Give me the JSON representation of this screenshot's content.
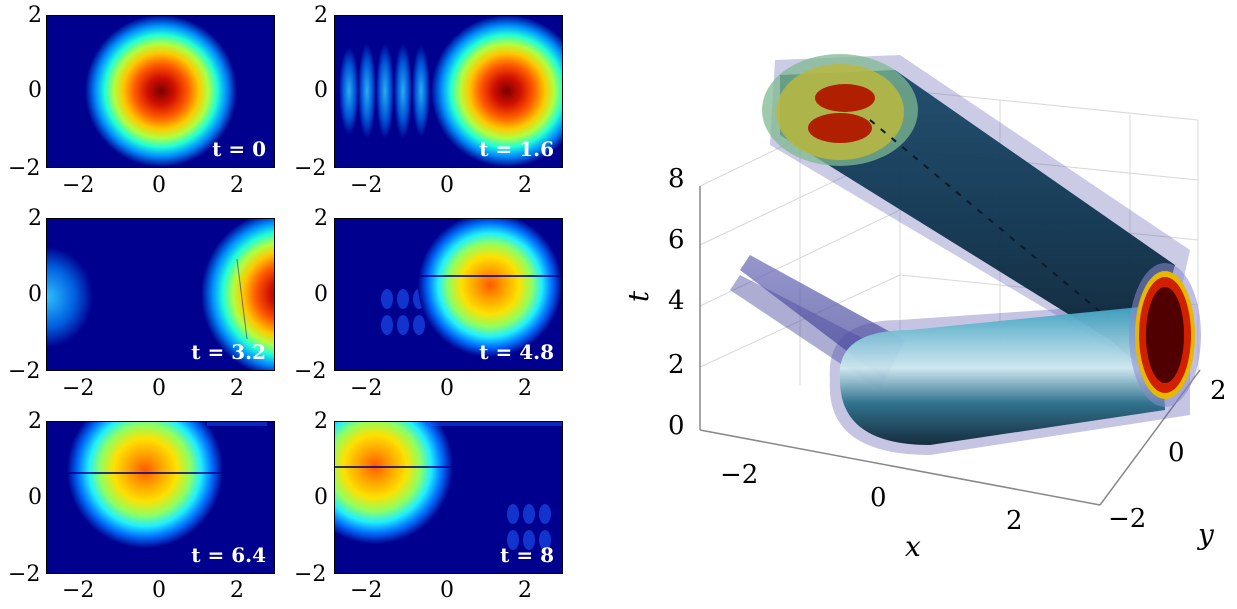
{
  "panels": [
    {
      "time_label": "t = 0",
      "yticks": [
        "2",
        "0",
        "−2"
      ],
      "xticks": [
        "−2",
        "0",
        "2"
      ]
    },
    {
      "time_label": "t = 1.6",
      "yticks": [
        "2",
        "0",
        "−2"
      ],
      "xticks": [
        "−2",
        "0",
        "2"
      ]
    },
    {
      "time_label": "t = 3.2",
      "yticks": [
        "2",
        "0",
        "−2"
      ],
      "xticks": [
        "−2",
        "0",
        "2"
      ]
    },
    {
      "time_label": "t = 4.8",
      "yticks": [
        "2",
        "0",
        "−2"
      ],
      "xticks": [
        "−2",
        "0",
        "2"
      ]
    },
    {
      "time_label": "t = 6.4",
      "yticks": [
        "2",
        "0",
        "−2"
      ],
      "xticks": [
        "−2",
        "0",
        "2"
      ]
    },
    {
      "time_label": "t = 8",
      "yticks": [
        "2",
        "0",
        "−2"
      ],
      "xticks": [
        "−2",
        "0",
        "2"
      ]
    }
  ],
  "plot3d": {
    "t_label": "t",
    "x_label": "x",
    "y_label": "y",
    "t_ticks": [
      "8",
      "6",
      "4",
      "2",
      "0"
    ],
    "x_ticks": [
      "−2",
      "0",
      "2"
    ],
    "y_ticks": [
      "2",
      "0",
      "−2"
    ]
  },
  "colors": {
    "background": "#00008f",
    "peak": "#7a0000"
  }
}
